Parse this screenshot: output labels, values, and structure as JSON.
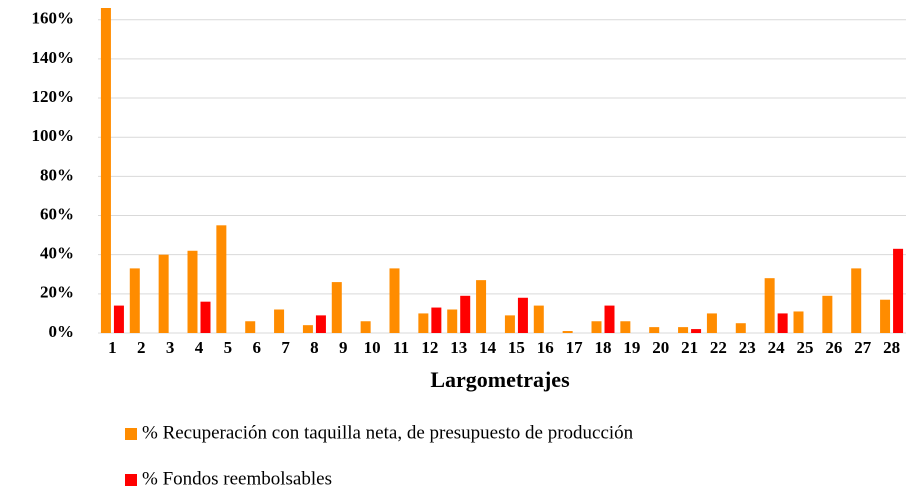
{
  "chart_data": {
    "type": "bar",
    "x_label": "Largometrajes",
    "categories": [
      "1",
      "2",
      "3",
      "4",
      "5",
      "6",
      "7",
      "8",
      "9",
      "10",
      "11",
      "12",
      "13",
      "14",
      "15",
      "16",
      "17",
      "18",
      "19",
      "20",
      "21",
      "22",
      "23",
      "24",
      "25",
      "26",
      "27",
      "28"
    ],
    "series": [
      {
        "name": "% Recuperación con taquilla neta, de presupuesto de producción",
        "color": "#ff8c00",
        "values": [
          166,
          33,
          40,
          42,
          55,
          6,
          12,
          4,
          26,
          6,
          33,
          10,
          12,
          27,
          9,
          14,
          1,
          6,
          6,
          3,
          3,
          10,
          5,
          28,
          11,
          19,
          33,
          17
        ]
      },
      {
        "name": "% Fondos reembolsables",
        "color": "#ff0000",
        "values": [
          14,
          0,
          0,
          16,
          0,
          0,
          0,
          9,
          0,
          0,
          0,
          13,
          19,
          0,
          18,
          0,
          0,
          14,
          0,
          0,
          2,
          0,
          0,
          10,
          0,
          0,
          0,
          43
        ]
      }
    ],
    "ylim": [
      0,
      166
    ],
    "yticks": [
      {
        "value": 0,
        "label": "0%"
      },
      {
        "value": 20,
        "label": "20%"
      },
      {
        "value": 40,
        "label": "40%"
      },
      {
        "value": 60,
        "label": "60%"
      },
      {
        "value": 80,
        "label": "80%"
      },
      {
        "value": 100,
        "label": "100%"
      },
      {
        "value": 120,
        "label": "120%"
      },
      {
        "value": 140,
        "label": "140%"
      },
      {
        "value": 160,
        "label": "160%"
      }
    ],
    "grid": true
  }
}
